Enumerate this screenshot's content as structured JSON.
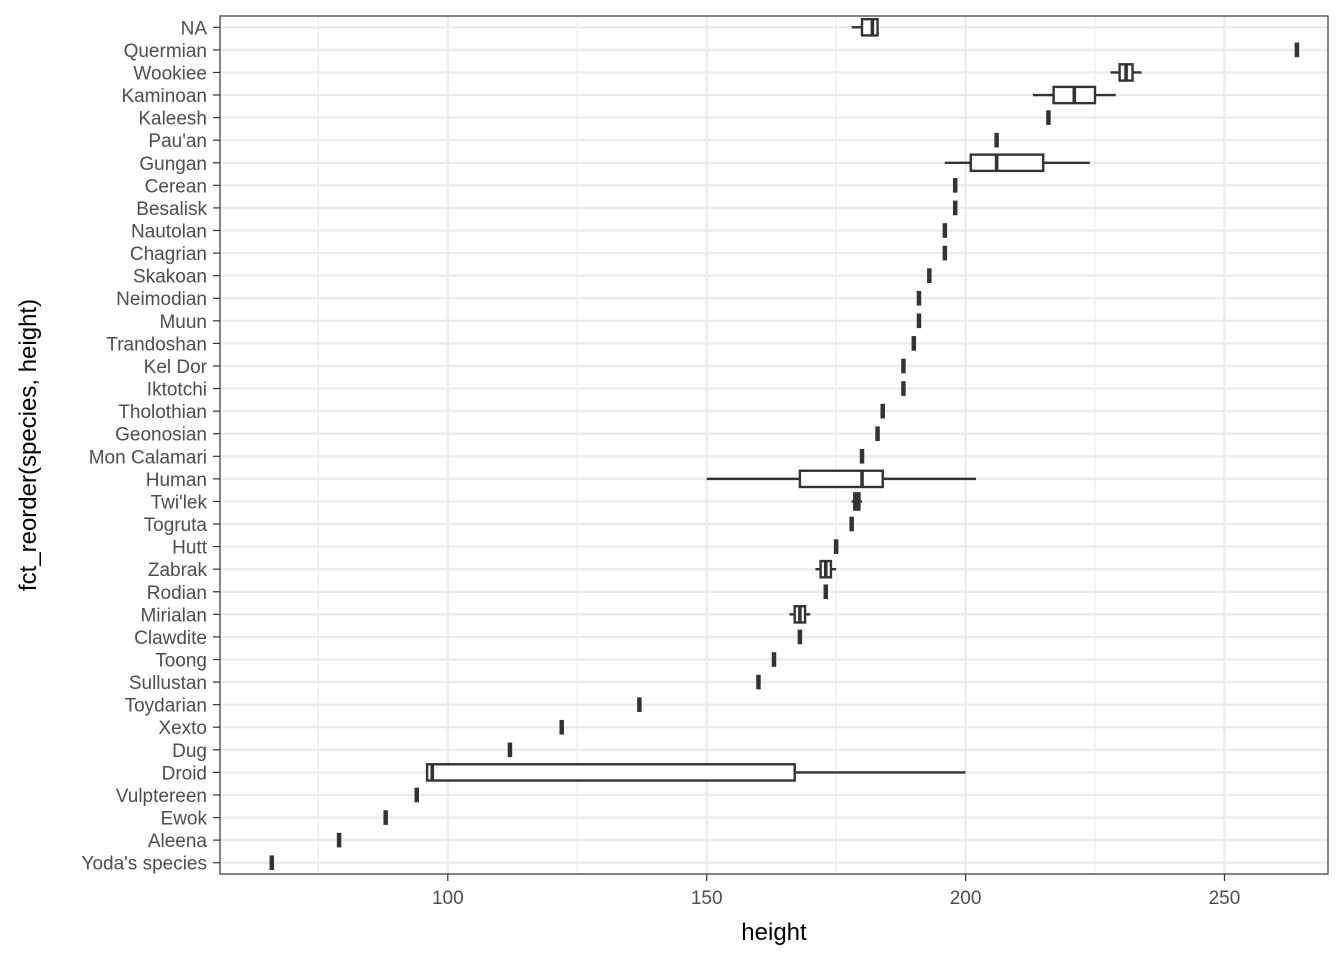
{
  "chart_data": {
    "type": "boxplot",
    "orientation": "horizontal",
    "xlabel": "height",
    "ylabel": "fct_reorder(species, height)",
    "xlim": [
      56,
      270
    ],
    "x_ticks": [
      100,
      150,
      200,
      250
    ],
    "x_tick_labels": [
      "100",
      "150",
      "200",
      "250"
    ],
    "grid": true,
    "theme": "bw",
    "categories": [
      "Yoda's species",
      "Aleena",
      "Ewok",
      "Vulptereen",
      "Droid",
      "Dug",
      "Xexto",
      "Toydarian",
      "Sullustan",
      "Toong",
      "Clawdite",
      "Mirialan",
      "Rodian",
      "Zabrak",
      "Hutt",
      "Togruta",
      "Twi'lek",
      "Human",
      "Mon Calamari",
      "Geonosian",
      "Tholothian",
      "Iktotchi",
      "Kel Dor",
      "Trandoshan",
      "Muun",
      "Neimodian",
      "Skakoan",
      "Chagrian",
      "Nautolan",
      "Besalisk",
      "Cerean",
      "Gungan",
      "Pau'an",
      "Kaleesh",
      "Kaminoan",
      "Wookiee",
      "Quermian",
      "NA"
    ],
    "boxes": [
      {
        "category": "Yoda's species",
        "min": 66,
        "q1": 66,
        "median": 66,
        "q3": 66,
        "max": 66
      },
      {
        "category": "Aleena",
        "min": 79,
        "q1": 79,
        "median": 79,
        "q3": 79,
        "max": 79
      },
      {
        "category": "Ewok",
        "min": 88,
        "q1": 88,
        "median": 88,
        "q3": 88,
        "max": 88
      },
      {
        "category": "Vulptereen",
        "min": 94,
        "q1": 94,
        "median": 94,
        "q3": 94,
        "max": 94
      },
      {
        "category": "Droid",
        "min": 96,
        "q1": 96,
        "median": 97,
        "q3": 167,
        "max": 200
      },
      {
        "category": "Dug",
        "min": 112,
        "q1": 112,
        "median": 112,
        "q3": 112,
        "max": 112
      },
      {
        "category": "Xexto",
        "min": 122,
        "q1": 122,
        "median": 122,
        "q3": 122,
        "max": 122
      },
      {
        "category": "Toydarian",
        "min": 137,
        "q1": 137,
        "median": 137,
        "q3": 137,
        "max": 137
      },
      {
        "category": "Sullustan",
        "min": 160,
        "q1": 160,
        "median": 160,
        "q3": 160,
        "max": 160
      },
      {
        "category": "Toong",
        "min": 163,
        "q1": 163,
        "median": 163,
        "q3": 163,
        "max": 163
      },
      {
        "category": "Clawdite",
        "min": 168,
        "q1": 168,
        "median": 168,
        "q3": 168,
        "max": 168
      },
      {
        "category": "Mirialan",
        "min": 166,
        "q1": 167,
        "median": 168,
        "q3": 169,
        "max": 170
      },
      {
        "category": "Rodian",
        "min": 173,
        "q1": 173,
        "median": 173,
        "q3": 173,
        "max": 173
      },
      {
        "category": "Zabrak",
        "min": 171,
        "q1": 172,
        "median": 173,
        "q3": 174,
        "max": 175
      },
      {
        "category": "Hutt",
        "min": 175,
        "q1": 175,
        "median": 175,
        "q3": 175,
        "max": 175
      },
      {
        "category": "Togruta",
        "min": 178,
        "q1": 178,
        "median": 178,
        "q3": 178,
        "max": 178
      },
      {
        "category": "Twi'lek",
        "min": 178,
        "q1": 178.5,
        "median": 179,
        "q3": 179.5,
        "max": 180
      },
      {
        "category": "Human",
        "min": 150,
        "q1": 168,
        "median": 180,
        "q3": 184,
        "max": 202
      },
      {
        "category": "Mon Calamari",
        "min": 180,
        "q1": 180,
        "median": 180,
        "q3": 180,
        "max": 180
      },
      {
        "category": "Geonosian",
        "min": 183,
        "q1": 183,
        "median": 183,
        "q3": 183,
        "max": 183
      },
      {
        "category": "Tholothian",
        "min": 184,
        "q1": 184,
        "median": 184,
        "q3": 184,
        "max": 184
      },
      {
        "category": "Iktotchi",
        "min": 188,
        "q1": 188,
        "median": 188,
        "q3": 188,
        "max": 188
      },
      {
        "category": "Kel Dor",
        "min": 188,
        "q1": 188,
        "median": 188,
        "q3": 188,
        "max": 188
      },
      {
        "category": "Trandoshan",
        "min": 190,
        "q1": 190,
        "median": 190,
        "q3": 190,
        "max": 190
      },
      {
        "category": "Muun",
        "min": 191,
        "q1": 191,
        "median": 191,
        "q3": 191,
        "max": 191
      },
      {
        "category": "Neimodian",
        "min": 191,
        "q1": 191,
        "median": 191,
        "q3": 191,
        "max": 191
      },
      {
        "category": "Skakoan",
        "min": 193,
        "q1": 193,
        "median": 193,
        "q3": 193,
        "max": 193
      },
      {
        "category": "Chagrian",
        "min": 196,
        "q1": 196,
        "median": 196,
        "q3": 196,
        "max": 196
      },
      {
        "category": "Nautolan",
        "min": 196,
        "q1": 196,
        "median": 196,
        "q3": 196,
        "max": 196
      },
      {
        "category": "Besalisk",
        "min": 198,
        "q1": 198,
        "median": 198,
        "q3": 198,
        "max": 198
      },
      {
        "category": "Cerean",
        "min": 198,
        "q1": 198,
        "median": 198,
        "q3": 198,
        "max": 198
      },
      {
        "category": "Gungan",
        "min": 196,
        "q1": 201,
        "median": 206,
        "q3": 215,
        "max": 224
      },
      {
        "category": "Pau'an",
        "min": 206,
        "q1": 206,
        "median": 206,
        "q3": 206,
        "max": 206
      },
      {
        "category": "Kaleesh",
        "min": 216,
        "q1": 216,
        "median": 216,
        "q3": 216,
        "max": 216
      },
      {
        "category": "Kaminoan",
        "min": 213,
        "q1": 217,
        "median": 221,
        "q3": 225,
        "max": 229
      },
      {
        "category": "Wookiee",
        "min": 228,
        "q1": 229.75,
        "median": 231,
        "q3": 232.25,
        "max": 234
      },
      {
        "category": "Quermian",
        "min": 264,
        "q1": 264,
        "median": 264,
        "q3": 264,
        "max": 264
      },
      {
        "category": "NA",
        "min": 178,
        "q1": 180,
        "median": 182,
        "q3": 183,
        "max": 183
      }
    ]
  }
}
